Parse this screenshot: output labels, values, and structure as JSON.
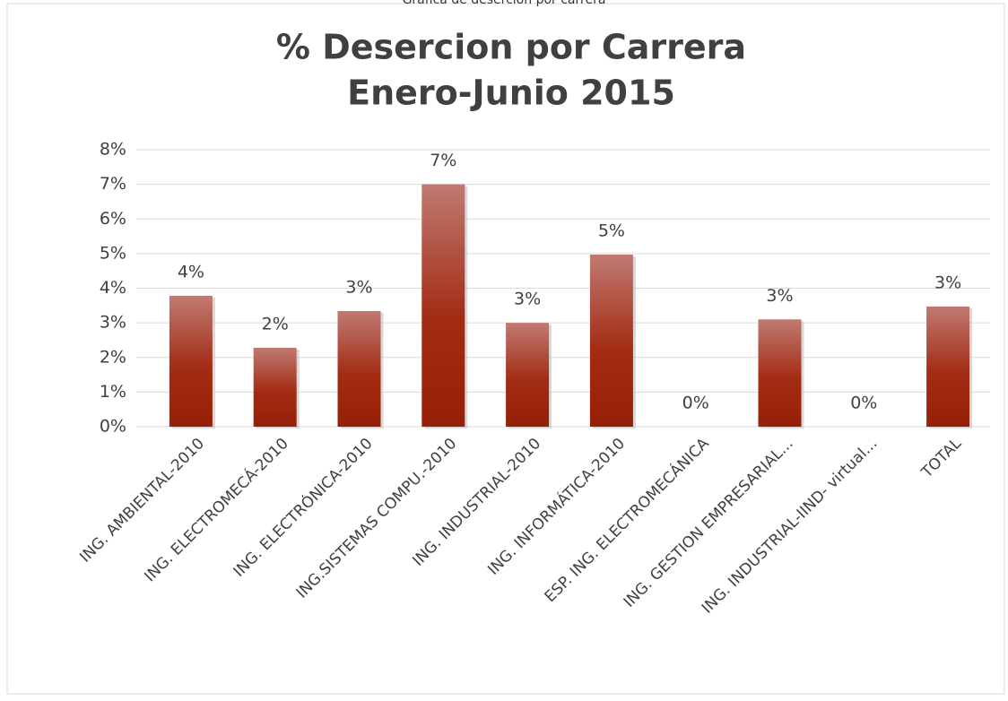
{
  "caption": "Gráfica de deserción por carrera",
  "chart_data": {
    "type": "bar",
    "title": [
      "% Desercion por Carrera",
      "Enero-Junio 2015"
    ],
    "categories": [
      "ING. AMBIENTAL-2010",
      "ING. ELECTROMECÁ-2010",
      "ING. ELECTRÓNICA-2010",
      "ING.SISTEMAS COMPU.-2010",
      "ING. INDUSTRIAL-2010",
      "ING. INFORMÁTICA-2010",
      "ESP. ING. ELECTROMECÁNICA",
      "ING. GESTION EMPRESARIAL...",
      "ING. INDUSTRIAL-IIND- virtual...",
      "TOTAL"
    ],
    "values": [
      3.78,
      2.28,
      3.34,
      7.0,
      3.0,
      4.97,
      0,
      3.1,
      0,
      3.47
    ],
    "value_labels": [
      "4%",
      "2%",
      "3%",
      "7%",
      "3%",
      "5%",
      "0%",
      "3%",
      "0%",
      "3%"
    ],
    "color": "#9a2008",
    "ylim": [
      0,
      8
    ],
    "yticks": [
      {
        "value": 0,
        "label": "0%"
      },
      {
        "value": 1,
        "label": "1%"
      },
      {
        "value": 2,
        "label": "2%"
      },
      {
        "value": 3,
        "label": "3%"
      },
      {
        "value": 4,
        "label": "4%"
      },
      {
        "value": 5,
        "label": "5%"
      },
      {
        "value": 6,
        "label": "6%"
      },
      {
        "value": 7,
        "label": "7%"
      },
      {
        "value": 8,
        "label": "8%"
      }
    ],
    "grid": true
  }
}
